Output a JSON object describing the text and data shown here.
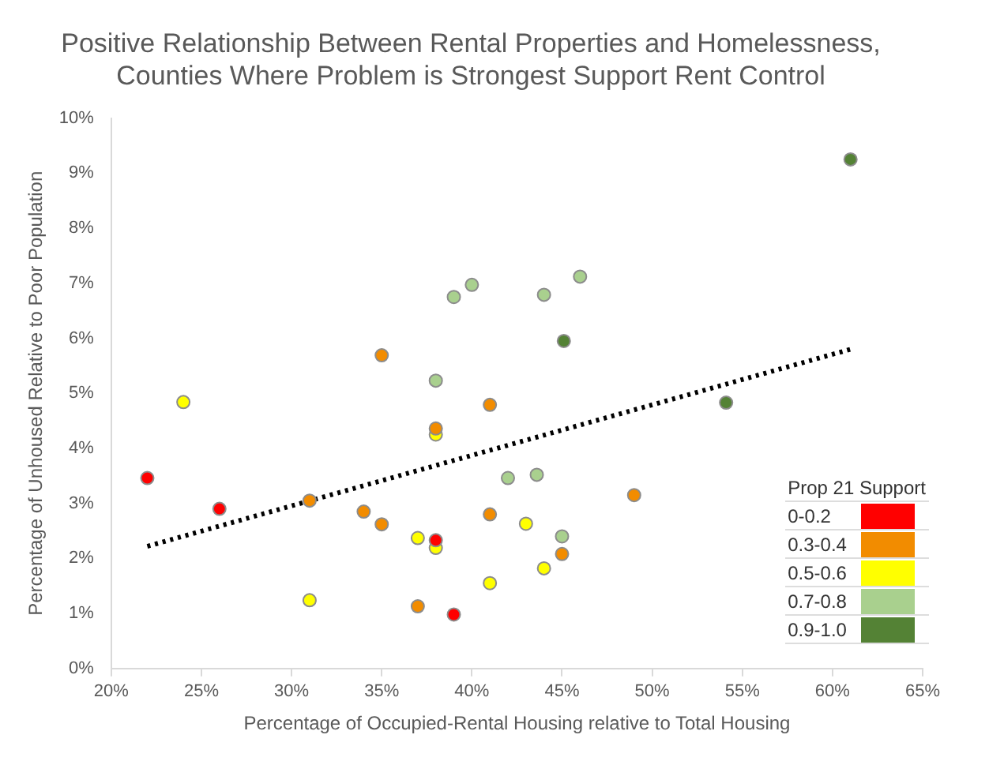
{
  "chart_data": {
    "type": "scatter",
    "title": "Positive Relationship Between Rental Properties and Homelessness,\nCounties Where Problem is Strongest Support Rent Control",
    "xlabel": "Percentage of Occupied-Rental Housing relative to Total Housing",
    "ylabel": "Percentage of Unhoused Relative to Poor Population",
    "legend_title": "Prop 21 Support",
    "legend": "bottom right",
    "grid": false,
    "marker": "circle",
    "xlim": [
      20,
      65
    ],
    "xticks": [
      {
        "value": 20,
        "label": "20%"
      },
      {
        "value": 25,
        "label": "25%"
      },
      {
        "value": 30,
        "label": "30%"
      },
      {
        "value": 35,
        "label": "35%"
      },
      {
        "value": 40,
        "label": "40%"
      },
      {
        "value": 45,
        "label": "45%"
      },
      {
        "value": 50,
        "label": "50%"
      },
      {
        "value": 55,
        "label": "55%"
      },
      {
        "value": 60,
        "label": "60%"
      },
      {
        "value": 65,
        "label": "65%"
      }
    ],
    "ylim": [
      0,
      10
    ],
    "yticks": [
      {
        "value": 0,
        "label": "0%"
      },
      {
        "value": 1,
        "label": "1%"
      },
      {
        "value": 2,
        "label": "2%"
      },
      {
        "value": 3,
        "label": "3%"
      },
      {
        "value": 4,
        "label": "4%"
      },
      {
        "value": 5,
        "label": "5%"
      },
      {
        "value": 6,
        "label": "6%"
      },
      {
        "value": 7,
        "label": "7%"
      },
      {
        "value": 8,
        "label": "8%"
      },
      {
        "value": 9,
        "label": "9%"
      },
      {
        "value": 10,
        "label": "10%"
      }
    ],
    "series": [
      {
        "name": "0-0.2",
        "color": "#ff0000",
        "x": [
          22,
          26,
          38,
          39
        ],
        "values": [
          3.46,
          2.9,
          2.33,
          0.98
        ]
      },
      {
        "name": "0.3-0.4",
        "color": "#f28c00",
        "x": [
          31,
          34,
          35,
          35,
          37,
          38,
          41,
          41,
          45,
          49
        ],
        "values": [
          3.05,
          2.85,
          5.69,
          2.62,
          1.13,
          4.36,
          4.79,
          2.8,
          2.08,
          3.15
        ]
      },
      {
        "name": "0.5-0.6",
        "color": "#ffff00",
        "x": [
          24,
          31,
          37,
          38,
          38,
          41,
          43,
          44
        ],
        "values": [
          4.84,
          1.24,
          2.37,
          4.25,
          2.19,
          1.55,
          2.63,
          1.82
        ]
      },
      {
        "name": "0.7-0.8",
        "color": "#a9d08e",
        "x": [
          38,
          39,
          40,
          42,
          43.6,
          44,
          45,
          46
        ],
        "values": [
          5.23,
          6.75,
          6.97,
          3.46,
          3.52,
          6.79,
          2.4,
          7.12
        ]
      },
      {
        "name": "0.9-1.0",
        "color": "#548235",
        "x": [
          45.1,
          54.1,
          61
        ],
        "values": [
          5.95,
          4.83,
          9.25
        ]
      },
      {
        "type": "line",
        "color": "#000000",
        "line_style": "dotted",
        "marker": "none",
        "x": [
          22,
          61
        ],
        "values": [
          2.22,
          5.8
        ]
      }
    ]
  }
}
